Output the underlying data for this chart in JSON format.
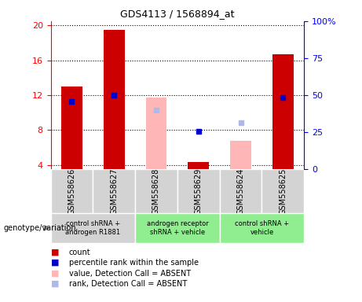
{
  "title": "GDS4113 / 1568894_at",
  "samples": [
    "GSM558626",
    "GSM558627",
    "GSM558628",
    "GSM558629",
    "GSM558624",
    "GSM558625"
  ],
  "count_values": [
    13.0,
    19.5,
    null,
    4.3,
    null,
    16.7
  ],
  "percentile_values": [
    11.3,
    12.0,
    null,
    7.8,
    null,
    11.7
  ],
  "absent_value_values": [
    null,
    null,
    11.7,
    null,
    6.8,
    null
  ],
  "absent_rank_values": [
    null,
    null,
    10.3,
    null,
    8.8,
    null
  ],
  "ylim_left": [
    3.5,
    20.5
  ],
  "ylim_right": [
    0,
    100
  ],
  "yticks_left": [
    4,
    8,
    12,
    16,
    20
  ],
  "yticks_right": [
    0,
    25,
    50,
    75,
    100
  ],
  "ytick_labels_right": [
    "0",
    "25",
    "50",
    "75",
    "100%"
  ],
  "count_color": "#cc0000",
  "percentile_color": "#0000cc",
  "absent_value_color": "#ffb6b6",
  "absent_rank_color": "#b0b8e8",
  "sample_bg_colors": [
    "#d3d3d3",
    "#d3d3d3",
    "#d3d3d3",
    "#d3d3d3",
    "#d3d3d3",
    "#d3d3d3"
  ],
  "groups_info": [
    {
      "start": 0,
      "end": 1,
      "label": "control shRNA +\nandrogen R1881",
      "color": "#d3d3d3"
    },
    {
      "start": 2,
      "end": 3,
      "label": "androgen receptor\nshRNA + vehicle",
      "color": "#90EE90"
    },
    {
      "start": 4,
      "end": 5,
      "label": "control shRNA +\nvehicle",
      "color": "#90EE90"
    }
  ],
  "legend_items": [
    {
      "label": "count",
      "color": "#cc0000"
    },
    {
      "label": "percentile rank within the sample",
      "color": "#0000cc"
    },
    {
      "label": "value, Detection Call = ABSENT",
      "color": "#ffb6b6"
    },
    {
      "label": "rank, Detection Call = ABSENT",
      "color": "#b0b8e8"
    }
  ]
}
